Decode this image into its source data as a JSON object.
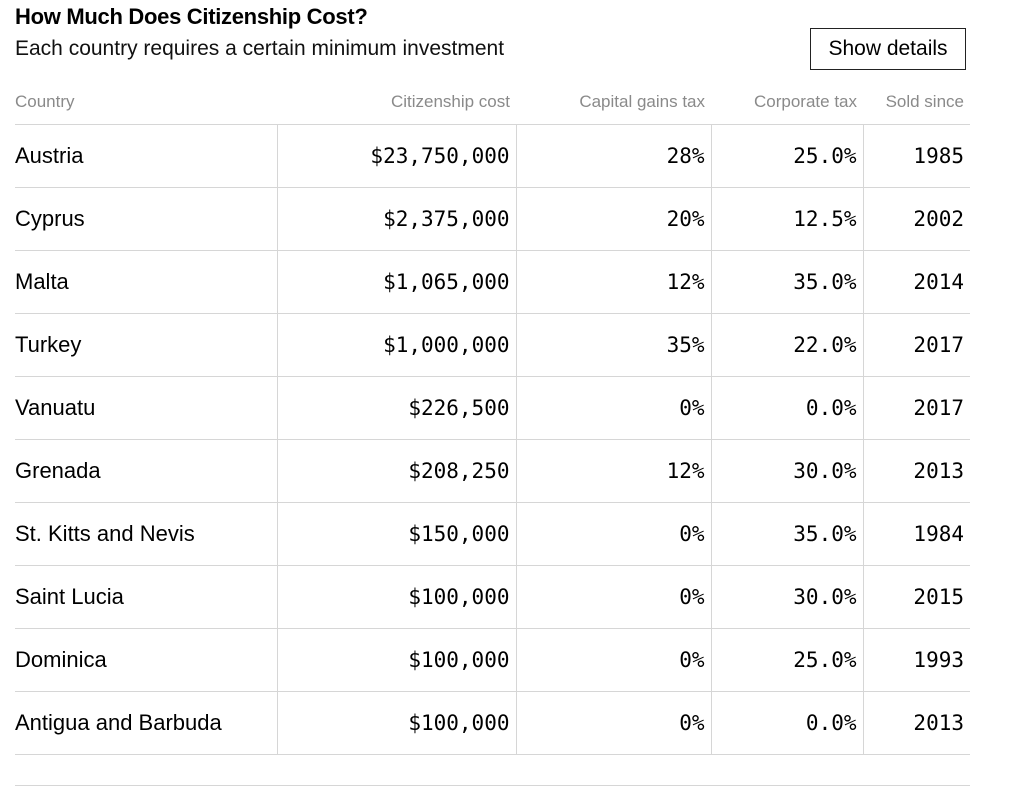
{
  "header": {
    "title": "How Much Does Citizenship Cost?",
    "subtitle": "Each country requires a certain minimum investment",
    "details_button": "Show details"
  },
  "chart_data": {
    "type": "table",
    "title": "How Much Does Citizenship Cost?",
    "subtitle": "Each country requires a certain minimum investment",
    "columns": [
      "Country",
      "Citizenship cost",
      "Capital gains tax",
      "Corporate tax",
      "Sold since"
    ],
    "rows": [
      {
        "country": "Austria",
        "cost": "$23,750,000",
        "capital_gains": "28%",
        "corporate": "25.0%",
        "since": "1985"
      },
      {
        "country": "Cyprus",
        "cost": "$2,375,000",
        "capital_gains": "20%",
        "corporate": "12.5%",
        "since": "2002"
      },
      {
        "country": "Malta",
        "cost": "$1,065,000",
        "capital_gains": "12%",
        "corporate": "35.0%",
        "since": "2014"
      },
      {
        "country": "Turkey",
        "cost": "$1,000,000",
        "capital_gains": "35%",
        "corporate": "22.0%",
        "since": "2017"
      },
      {
        "country": "Vanuatu",
        "cost": "$226,500",
        "capital_gains": "0%",
        "corporate": "0.0%",
        "since": "2017"
      },
      {
        "country": "Grenada",
        "cost": "$208,250",
        "capital_gains": "12%",
        "corporate": "30.0%",
        "since": "2013"
      },
      {
        "country": "St. Kitts and Nevis",
        "cost": "$150,000",
        "capital_gains": "0%",
        "corporate": "35.0%",
        "since": "1984"
      },
      {
        "country": "Saint Lucia",
        "cost": "$100,000",
        "capital_gains": "0%",
        "corporate": "30.0%",
        "since": "2015"
      },
      {
        "country": "Dominica",
        "cost": "$100,000",
        "capital_gains": "0%",
        "corporate": "25.0%",
        "since": "1993"
      },
      {
        "country": "Antigua and Barbuda",
        "cost": "$100,000",
        "capital_gains": "0%",
        "corporate": "0.0%",
        "since": "2013"
      }
    ]
  }
}
